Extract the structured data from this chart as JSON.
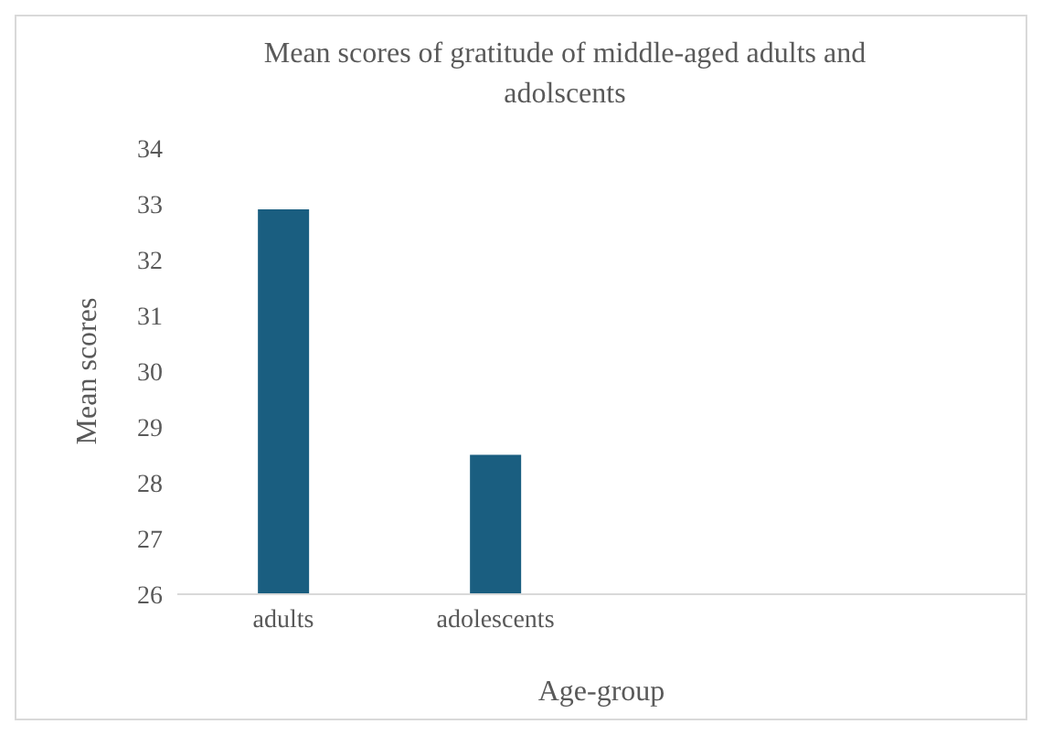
{
  "chart_data": {
    "type": "bar",
    "title": "Mean scores of gratitude of middle-aged adults and adolscents",
    "xlabel": "Age-group",
    "ylabel": "Mean scores",
    "categories": [
      "adults",
      "adolescents",
      null,
      null
    ],
    "values": [
      32.9,
      28.5,
      null,
      null
    ],
    "color": "#1a5e80",
    "ylim": [
      26,
      34
    ],
    "yticks": [
      26,
      27,
      28,
      29,
      30,
      31,
      32,
      33,
      34
    ],
    "grid": false,
    "legend": false
  }
}
